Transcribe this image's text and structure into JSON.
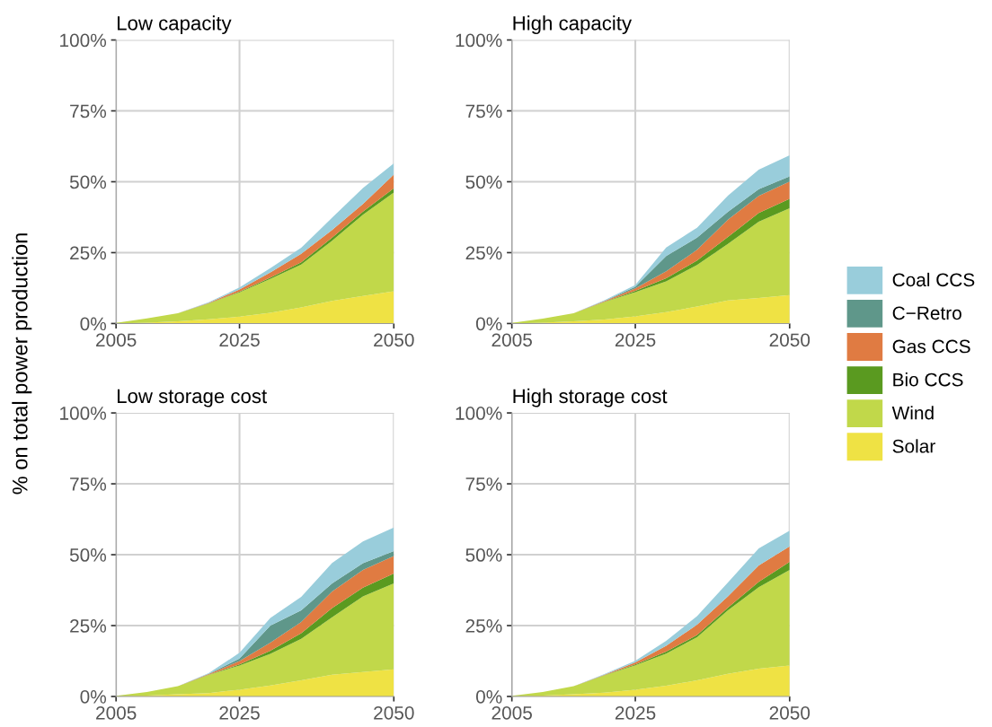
{
  "chart_data": [
    {
      "type": "area",
      "stacked": true,
      "title": "Low capacity",
      "ylabel": "% on total power production",
      "x": [
        2005,
        2010,
        2015,
        2020,
        2025,
        2030,
        2035,
        2040,
        2045,
        2050
      ],
      "xlim": [
        2005,
        2050
      ],
      "xticks": [
        2005,
        2025,
        2050
      ],
      "ylim": [
        0,
        100
      ],
      "yticks": [
        {
          "value": 0,
          "label": "0%"
        },
        {
          "value": 25,
          "label": "25%"
        },
        {
          "value": 50,
          "label": "50%"
        },
        {
          "value": 75,
          "label": "75%"
        },
        {
          "value": 100,
          "label": "100%"
        }
      ],
      "grid": true,
      "series": [
        {
          "color": "#efe244",
          "values": [
            0,
            0.3,
            0.8,
            1.5,
            2.4,
            3.8,
            5.7,
            8,
            9.7,
            11.4
          ]
        },
        {
          "color": "#c1d84a",
          "values": [
            0.2,
            1.5,
            2.8,
            5.5,
            8.6,
            11.9,
            15.1,
            21.2,
            28.7,
            34.8
          ]
        },
        {
          "color": "#5a9a20",
          "values": [
            0,
            0,
            0,
            0.1,
            0.2,
            0.5,
            0.8,
            1.1,
            1.1,
            1.5
          ]
        },
        {
          "color": "#e07b42",
          "values": [
            0,
            0,
            0,
            0.2,
            0.8,
            1.8,
            3,
            2.7,
            2.7,
            4.8
          ]
        },
        {
          "color": "#99cddb",
          "values": [
            0,
            0,
            0,
            0.2,
            0.7,
            1.5,
            2.1,
            4.3,
            5.6,
            4.0
          ]
        }
      ]
    },
    {
      "type": "area",
      "stacked": true,
      "title": "High capacity",
      "legend": "right",
      "x": [
        2005,
        2010,
        2015,
        2020,
        2025,
        2030,
        2035,
        2040,
        2045,
        2050
      ],
      "xlim": [
        2005,
        2050
      ],
      "xticks": [
        2005,
        2025,
        2050
      ],
      "ylim": [
        0,
        100
      ],
      "yticks": [
        {
          "value": 0,
          "label": "0%"
        },
        {
          "value": 25,
          "label": "25%"
        },
        {
          "value": 50,
          "label": "50%"
        },
        {
          "value": 75,
          "label": "75%"
        },
        {
          "value": 100,
          "label": "100%"
        }
      ],
      "grid": true,
      "series": [
        {
          "name": "Solar",
          "color": "#efe244",
          "values": [
            0,
            0.3,
            0.8,
            1.4,
            2.5,
            4,
            6,
            8.1,
            9,
            10
          ]
        },
        {
          "name": "Wind",
          "color": "#c1d84a",
          "values": [
            0.2,
            1.4,
            2.8,
            6.2,
            8.6,
            10.9,
            14.6,
            20,
            26.9,
            30.7
          ]
        },
        {
          "name": "Bio CCS",
          "color": "#5a9a20",
          "values": [
            0,
            0,
            0,
            0.1,
            0.4,
            1.1,
            1.6,
            2.4,
            3.1,
            3.3
          ]
        },
        {
          "name": "Gas CCS",
          "color": "#e07b42",
          "values": [
            0,
            0,
            0,
            0.2,
            0.9,
            2.4,
            3.8,
            6.1,
            6,
            6.1
          ]
        },
        {
          "name": "C−Retro",
          "color": "#5f978a",
          "values": [
            0,
            0,
            0,
            0.1,
            0.6,
            5.4,
            4.3,
            2.8,
            2.4,
            1.8
          ]
        },
        {
          "name": "Coal CCS",
          "color": "#99cddb",
          "values": [
            0,
            0,
            0,
            0.2,
            0.6,
            3,
            3.5,
            5.7,
            6.9,
            7.4
          ]
        }
      ]
    },
    {
      "type": "area",
      "stacked": true,
      "title": "Low storage cost",
      "x": [
        2005,
        2010,
        2015,
        2020,
        2025,
        2030,
        2035,
        2040,
        2045,
        2050
      ],
      "xlim": [
        2005,
        2050
      ],
      "xticks": [
        2005,
        2025,
        2050
      ],
      "ylim": [
        0,
        100
      ],
      "yticks": [
        {
          "value": 0,
          "label": "0%"
        },
        {
          "value": 25,
          "label": "25%"
        },
        {
          "value": 50,
          "label": "50%"
        },
        {
          "value": 75,
          "label": "75%"
        },
        {
          "value": 100,
          "label": "100%"
        }
      ],
      "grid": true,
      "series": [
        {
          "color": "#efe244",
          "values": [
            0,
            0.3,
            0.8,
            1.2,
            2.4,
            3.9,
            5.7,
            7.7,
            8.6,
            9.6
          ]
        },
        {
          "color": "#c1d84a",
          "values": [
            0.2,
            1.3,
            2.8,
            6.4,
            8.5,
            11.1,
            14.6,
            20.2,
            26.7,
            30.3
          ]
        },
        {
          "color": "#5a9a20",
          "values": [
            0,
            0,
            0,
            0.1,
            0.4,
            1.1,
            2,
            3.3,
            3.1,
            3.5
          ]
        },
        {
          "color": "#e07b42",
          "values": [
            0,
            0,
            0,
            0.2,
            1.2,
            2.9,
            4,
            5.8,
            6.2,
            6.1
          ]
        },
        {
          "color": "#5f978a",
          "values": [
            0,
            0,
            0,
            0.1,
            0.9,
            6,
            4.1,
            2.9,
            2.4,
            1.8
          ]
        },
        {
          "color": "#99cddb",
          "values": [
            0,
            0,
            0,
            0.2,
            2,
            2.7,
            4.7,
            7.2,
            7.7,
            8.3
          ]
        }
      ]
    },
    {
      "type": "area",
      "stacked": true,
      "title": "High storage cost",
      "x": [
        2005,
        2010,
        2015,
        2020,
        2025,
        2030,
        2035,
        2040,
        2045,
        2050
      ],
      "xlim": [
        2005,
        2050
      ],
      "xticks": [
        2005,
        2025,
        2050
      ],
      "ylim": [
        0,
        100
      ],
      "yticks": [
        {
          "value": 0,
          "label": "0%"
        },
        {
          "value": 25,
          "label": "25%"
        },
        {
          "value": 50,
          "label": "50%"
        },
        {
          "value": 75,
          "label": "75%"
        },
        {
          "value": 100,
          "label": "100%"
        }
      ],
      "grid": true,
      "series": [
        {
          "color": "#efe244",
          "values": [
            0,
            0.3,
            0.8,
            1.3,
            2.4,
            3.8,
            5.7,
            8,
            9.8,
            10.9
          ]
        },
        {
          "color": "#c1d84a",
          "values": [
            0.2,
            1.3,
            2.8,
            6.1,
            8.6,
            11.3,
            15.2,
            22.4,
            28.7,
            33.7
          ]
        },
        {
          "color": "#5a9a20",
          "values": [
            0,
            0,
            0,
            0.1,
            0.3,
            0.7,
            0.8,
            0.9,
            1.9,
            2.9
          ]
        },
        {
          "color": "#e07b42",
          "values": [
            0,
            0,
            0,
            0.2,
            0.7,
            2.1,
            3.6,
            4,
            5.8,
            5.4
          ]
        },
        {
          "color": "#99cddb",
          "values": [
            0,
            0,
            0,
            0.2,
            0.6,
            1.7,
            3,
            4.9,
            6,
            5.6
          ]
        }
      ]
    }
  ]
}
